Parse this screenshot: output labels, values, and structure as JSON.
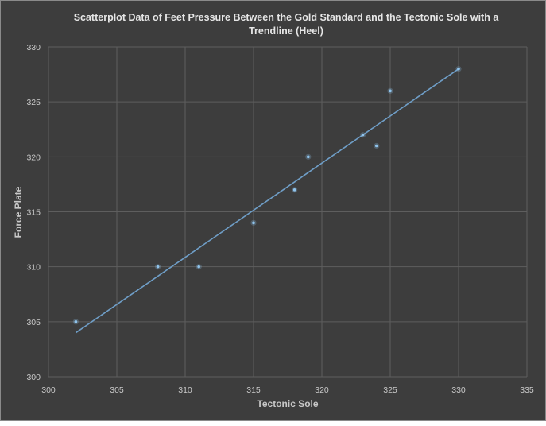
{
  "chart_data": {
    "type": "scatter",
    "title": "Scatterplot Data of Feet Pressure Between the Gold Standard and the Tectonic Sole with a\nTrendline (Heel)",
    "xlabel": "Tectonic Sole",
    "ylabel": "Force Plate",
    "xlim": [
      300,
      335
    ],
    "ylim": [
      300,
      330
    ],
    "x_ticks": [
      300,
      305,
      310,
      315,
      320,
      325,
      330,
      335
    ],
    "y_ticks": [
      300,
      305,
      310,
      315,
      320,
      325,
      330
    ],
    "grid": true,
    "points": [
      {
        "x": 302,
        "y": 305
      },
      {
        "x": 308,
        "y": 310
      },
      {
        "x": 311,
        "y": 310
      },
      {
        "x": 315,
        "y": 314
      },
      {
        "x": 318,
        "y": 317
      },
      {
        "x": 319,
        "y": 320
      },
      {
        "x": 323,
        "y": 322
      },
      {
        "x": 324,
        "y": 321
      },
      {
        "x": 325,
        "y": 326
      },
      {
        "x": 330,
        "y": 328
      }
    ],
    "trendline": {
      "x": [
        302,
        330
      ],
      "y": [
        304,
        328
      ]
    },
    "colors": {
      "background": "#3d3d3d",
      "gridline": "#5e5e5e",
      "marker": "#8fc3ec",
      "trendline": "#6f9ec7",
      "text": "#c8c8c8"
    }
  }
}
